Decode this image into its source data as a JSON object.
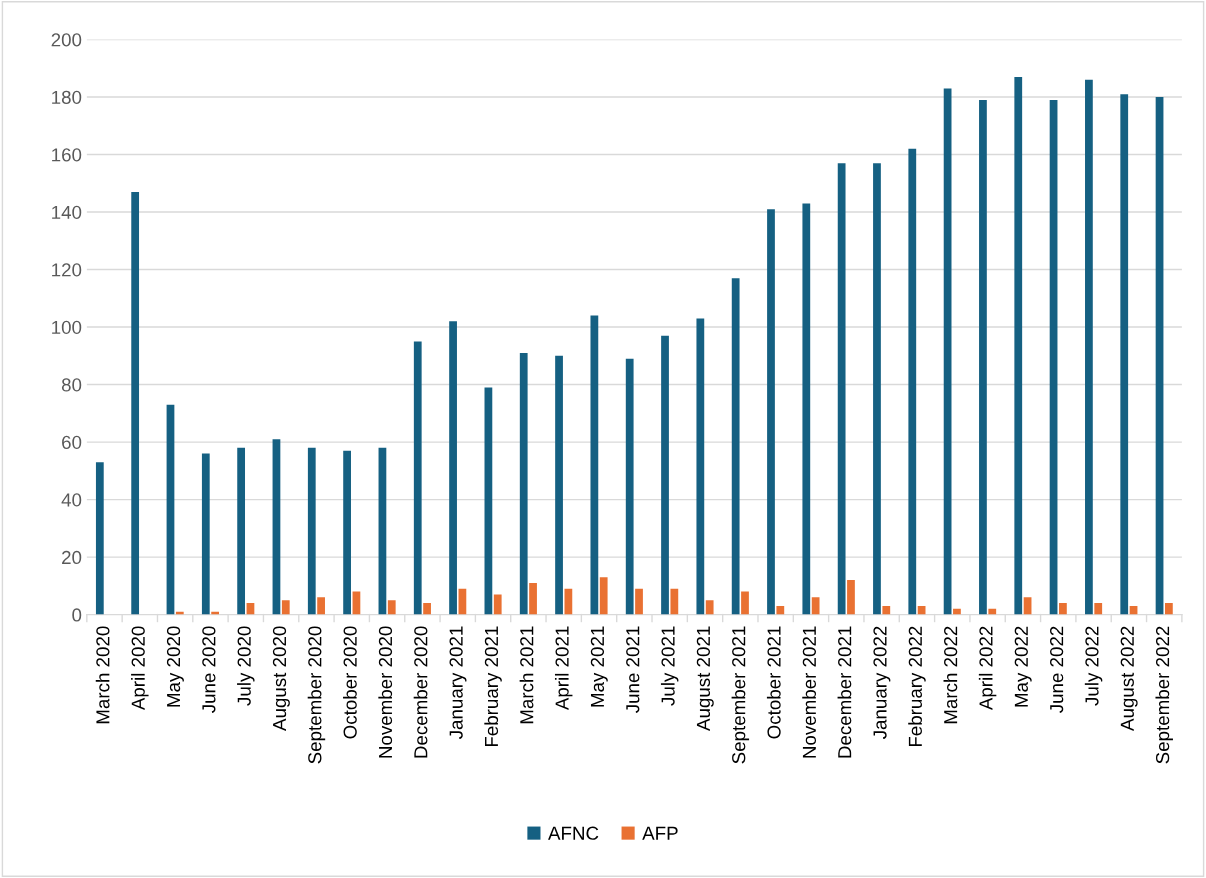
{
  "chart_data": {
    "type": "bar",
    "categories": [
      "March 2020",
      "April 2020",
      "May 2020",
      "June 2020",
      "July 2020",
      "August 2020",
      "September 2020",
      "October 2020",
      "November 2020",
      "December 2020",
      "January 2021",
      "February 2021",
      "March 2021",
      "April 2021",
      "May 2021",
      "June 2021",
      "July 2021",
      "August 2021",
      "September 2021",
      "October 2021",
      "November 2021",
      "December 2021",
      "January 2022",
      "February 2022",
      "March 2022",
      "April 2022",
      "May 2022",
      "June 2022",
      "July 2022",
      "August 2022",
      "September 2022"
    ],
    "series": [
      {
        "name": "AFNC",
        "color": "#156082",
        "values": [
          53,
          147,
          73,
          56,
          58,
          61,
          58,
          57,
          58,
          95,
          102,
          79,
          91,
          90,
          104,
          89,
          97,
          103,
          117,
          141,
          143,
          157,
          157,
          162,
          183,
          179,
          187,
          179,
          186,
          181,
          180
        ]
      },
      {
        "name": "AFP",
        "color": "#e97132",
        "values": [
          0,
          0,
          1,
          1,
          4,
          5,
          6,
          8,
          5,
          4,
          9,
          7,
          11,
          9,
          13,
          9,
          9,
          5,
          8,
          3,
          6,
          12,
          3,
          3,
          2,
          2,
          6,
          4,
          4,
          3,
          4
        ]
      }
    ],
    "ylim": [
      0,
      200
    ],
    "yticks": [
      0,
      20,
      40,
      60,
      80,
      100,
      120,
      140,
      160,
      180,
      200
    ],
    "grid": "y",
    "legend": "bottom"
  }
}
